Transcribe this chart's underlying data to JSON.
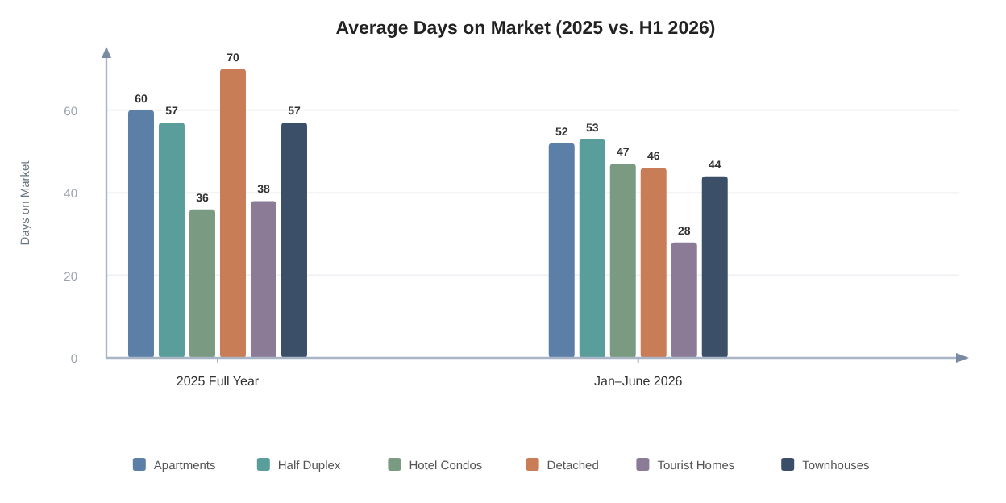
{
  "chart_data": {
    "type": "bar",
    "title": "Average Days on Market (2025 vs. H1 2026)",
    "ylabel": "Days on Market",
    "categories": [
      "2025 Full Year",
      "Jan–June 2026"
    ],
    "series": [
      {
        "name": "Apartments",
        "color": "#5b7fa6",
        "values": [
          60,
          52
        ]
      },
      {
        "name": "Half Duplex",
        "color": "#5a9e9b",
        "values": [
          57,
          53
        ]
      },
      {
        "name": "Hotel Condos",
        "color": "#7b9a82",
        "values": [
          36,
          47
        ]
      },
      {
        "name": "Detached",
        "color": "#c97d56",
        "values": [
          70,
          46
        ]
      },
      {
        "name": "Tourist Homes",
        "color": "#8c7b96",
        "values": [
          38,
          28
        ]
      },
      {
        "name": "Townhouses",
        "color": "#3b5068",
        "values": [
          57,
          44
        ]
      }
    ],
    "ylim": [
      0,
      75
    ],
    "yticks": [
      0,
      20,
      40,
      60
    ],
    "grid": "y",
    "legend": "bottom",
    "data_labels": true
  }
}
